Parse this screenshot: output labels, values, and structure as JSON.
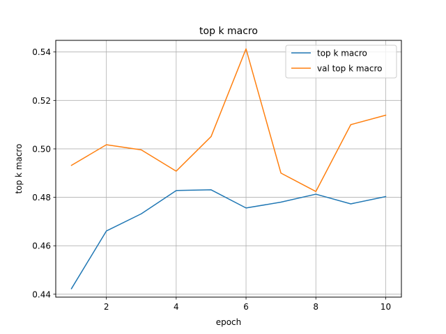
{
  "chart_data": {
    "type": "line",
    "title": "top k macro",
    "xlabel": "epoch",
    "ylabel": "top k macro",
    "x": [
      1,
      2,
      3,
      4,
      5,
      6,
      7,
      8,
      9,
      10
    ],
    "series": [
      {
        "name": "top k macro",
        "color": "#1f77b4",
        "values": [
          0.4423,
          0.4661,
          0.4732,
          0.4828,
          0.4831,
          0.4756,
          0.478,
          0.4813,
          0.4773,
          0.4803
        ]
      },
      {
        "name": "val top k macro",
        "color": "#ff7f0e",
        "values": [
          0.4932,
          0.5017,
          0.4996,
          0.4908,
          0.5051,
          0.5413,
          0.49,
          0.4824,
          0.51,
          0.5139
        ]
      }
    ],
    "xlim": [
      0.55,
      10.45
    ],
    "ylim": [
      0.4388,
      0.5448
    ],
    "xticks": [
      2,
      4,
      6,
      8,
      10
    ],
    "xtick_labels": [
      "2",
      "4",
      "6",
      "8",
      "10"
    ],
    "yticks": [
      0.44,
      0.46,
      0.48,
      0.5,
      0.52,
      0.54
    ],
    "ytick_labels": [
      "0.44",
      "0.46",
      "0.48",
      "0.50",
      "0.52",
      "0.54"
    ],
    "grid": true,
    "legend_position": "top-right"
  }
}
